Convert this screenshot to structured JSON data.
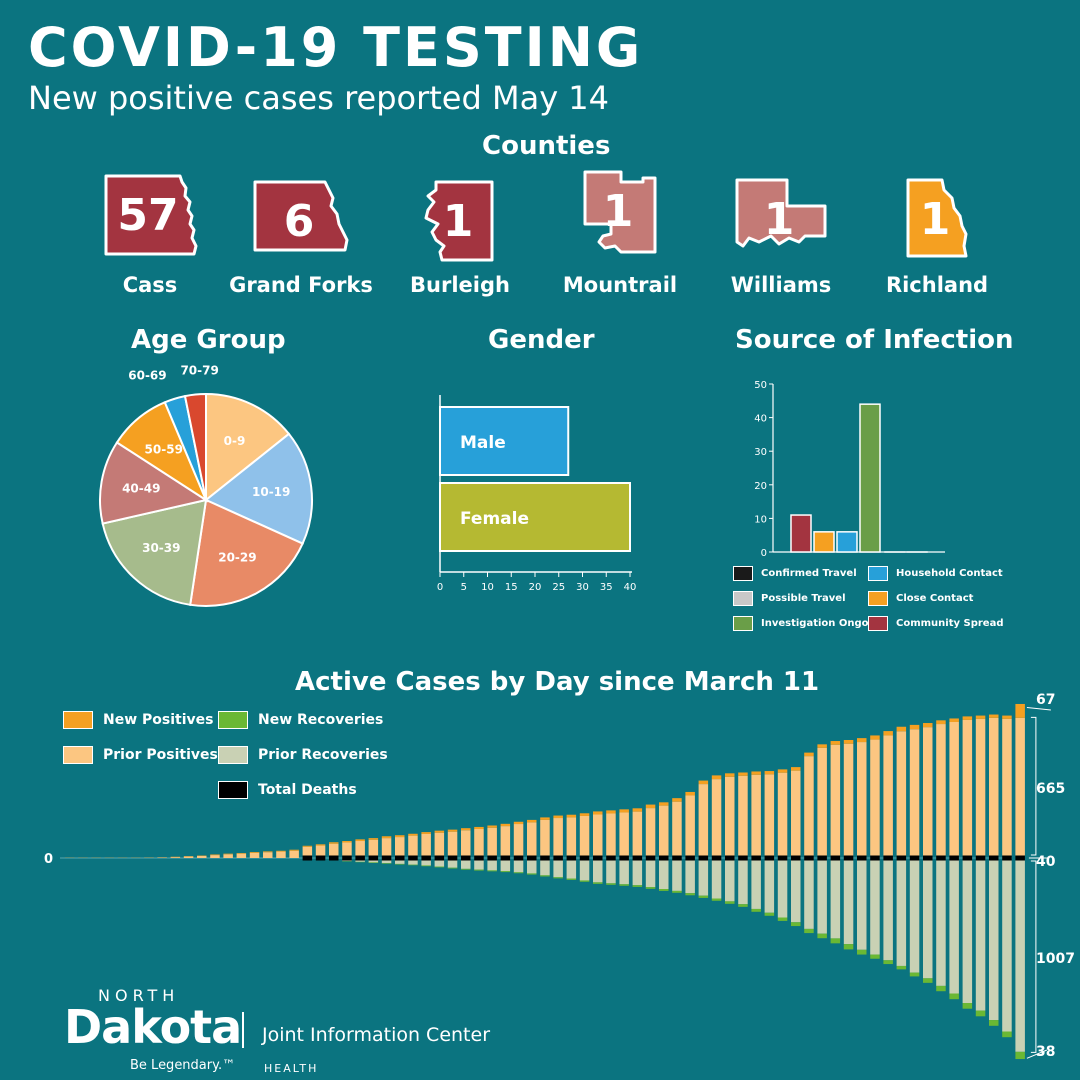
{
  "header": {
    "title": "COVID-19 TESTING",
    "subtitle": "New positive cases reported May 14"
  },
  "counties": {
    "title": "Counties",
    "items": [
      {
        "name": "Cass",
        "count": "57",
        "color": "#a33440",
        "shape": "cass-county-icon"
      },
      {
        "name": "Grand Forks",
        "count": "6",
        "color": "#a33440",
        "shape": "grand-forks-county-icon"
      },
      {
        "name": "Burleigh",
        "count": "1",
        "color": "#a33440",
        "shape": "burleigh-county-icon"
      },
      {
        "name": "Mountrail",
        "count": "1",
        "color": "#c47a76",
        "shape": "mountrail-county-icon"
      },
      {
        "name": "Williams",
        "count": "1",
        "color": "#c47a76",
        "shape": "williams-county-icon"
      },
      {
        "name": "Richland",
        "count": "1",
        "color": "#f5a021",
        "shape": "richland-county-icon"
      }
    ]
  },
  "age_section": {
    "title": "Age Group"
  },
  "gender_section": {
    "title": "Gender"
  },
  "source_section": {
    "title": "Source of Infection"
  },
  "active_section": {
    "title": "Active Cases by Day since March 11"
  },
  "chart_data": [
    {
      "type": "pie",
      "title": "Age Group",
      "categories": [
        "0-9",
        "10-19",
        "20-29",
        "30-39",
        "40-49",
        "50-59",
        "60-69",
        "70-79"
      ],
      "values": [
        9,
        11,
        13,
        12,
        8,
        6,
        2,
        2
      ],
      "colors": [
        "#fcc681",
        "#8fc1ea",
        "#e88a66",
        "#a6bb8c",
        "#c47a76",
        "#f5a021",
        "#27a0d9",
        "#d9482e"
      ]
    },
    {
      "type": "bar",
      "orientation": "horizontal",
      "title": "Gender",
      "categories": [
        "Male",
        "Female"
      ],
      "values": [
        27,
        40
      ],
      "colors": [
        "#27a0d9",
        "#b5b932"
      ],
      "xlim": [
        0,
        40
      ],
      "ticks": [
        0,
        5,
        10,
        15,
        20,
        25,
        30,
        35,
        40
      ]
    },
    {
      "type": "bar",
      "title": "Source of Infection",
      "categories": [
        "Community Spread",
        "Close Contact",
        "Household Contact",
        "Investigation Ongoing",
        "Confirmed Travel",
        "Possible Travel"
      ],
      "values": [
        11,
        6,
        6,
        44,
        0,
        0
      ],
      "colors": [
        "#a33440",
        "#f5a021",
        "#27a0d9",
        "#6a9e48",
        "#1a1a1a",
        "#c8c8c8"
      ],
      "ylim": [
        0,
        50
      ],
      "ticks": [
        0,
        10,
        20,
        30,
        40,
        50
      ],
      "legend": [
        {
          "label": "Confirmed Travel",
          "color": "#1a1a1a"
        },
        {
          "label": "Household Contact",
          "color": "#27a0d9"
        },
        {
          "label": "Possible Travel",
          "color": "#c8c8c8"
        },
        {
          "label": "Close Contact",
          "color": "#f5a021"
        },
        {
          "label": "Investigation Ongoing",
          "color": "#6a9e48"
        },
        {
          "label": "Community Spread",
          "color": "#a33440"
        }
      ]
    },
    {
      "type": "bar",
      "stacked": true,
      "title": "Active Cases by Day since March 11",
      "zero_label": "0",
      "series": [
        {
          "name": "New Positives",
          "color": "#f5a021",
          "values": [
            1,
            1,
            1,
            1,
            1,
            1,
            1,
            1,
            2,
            2,
            2,
            3,
            3,
            3,
            4,
            4,
            4,
            5,
            5,
            6,
            7,
            7,
            8,
            8,
            9,
            9,
            9,
            9,
            10,
            10,
            10,
            10,
            11,
            11,
            11,
            12,
            12,
            12,
            13,
            13,
            15,
            15,
            15,
            16,
            17,
            16,
            17,
            17,
            17,
            18,
            17,
            16,
            16,
            16,
            16,
            17,
            17,
            17,
            18,
            18,
            19,
            20,
            21,
            22,
            21,
            20,
            18,
            17,
            17,
            16,
            16,
            16,
            67
          ]
        },
        {
          "name": "Prior Positives",
          "color": "#fcc681",
          "values": [
            0,
            0,
            0,
            0,
            0,
            0,
            1,
            2,
            4,
            7,
            10,
            14,
            18,
            21,
            25,
            28,
            31,
            35,
            42,
            48,
            57,
            63,
            70,
            76,
            84,
            89,
            96,
            104,
            110,
            115,
            122,
            128,
            134,
            142,
            152,
            160,
            172,
            181,
            184,
            191,
            198,
            203,
            208,
            212,
            229,
            241,
            260,
            290,
            345,
            369,
            380,
            385,
            390,
            392,
            400,
            410,
            480,
            520,
            535,
            540,
            548,
            560,
            580,
            600,
            610,
            620,
            635,
            645,
            655,
            660,
            665,
            660,
            665
          ]
        },
        {
          "name": "Total Deaths",
          "color": "#000000",
          "values": [
            0,
            0,
            0,
            0,
            0,
            0,
            0,
            0,
            0,
            0,
            0,
            0,
            0,
            0,
            0,
            0,
            0,
            0,
            1,
            1,
            1,
            2,
            2,
            3,
            3,
            3,
            4,
            4,
            5,
            5,
            6,
            6,
            7,
            7,
            8,
            8,
            9,
            9,
            9,
            10,
            10,
            11,
            11,
            13,
            13,
            14,
            15,
            17,
            17,
            19,
            20,
            21,
            23,
            25,
            25,
            27,
            28,
            29,
            30,
            31,
            31,
            32,
            33,
            34,
            35,
            36,
            36,
            37,
            37,
            38,
            39,
            40,
            40
          ]
        },
        {
          "name": "Prior Recoveries",
          "color": "#c9d1b4",
          "values": [
            0,
            0,
            0,
            0,
            0,
            0,
            0,
            0,
            0,
            0,
            0,
            0,
            0,
            0,
            0,
            0,
            0,
            0,
            0,
            0,
            0,
            3,
            7,
            10,
            14,
            18,
            22,
            26,
            32,
            38,
            44,
            48,
            52,
            56,
            62,
            68,
            78,
            88,
            95,
            105,
            115,
            120,
            125,
            130,
            140,
            150,
            160,
            172,
            185,
            200,
            215,
            230,
            255,
            275,
            300,
            325,
            360,
            385,
            410,
            440,
            470,
            495,
            525,
            555,
            590,
            620,
            660,
            700,
            750,
            790,
            840,
            900,
            1007
          ]
        },
        {
          "name": "New Recoveries",
          "color": "#6ab834",
          "values": [
            0,
            0,
            0,
            0,
            0,
            0,
            0,
            0,
            0,
            0,
            0,
            0,
            0,
            0,
            0,
            0,
            0,
            0,
            0,
            0,
            0,
            2,
            2,
            3,
            3,
            3,
            3,
            4,
            4,
            4,
            4,
            5,
            5,
            5,
            5,
            6,
            6,
            6,
            7,
            7,
            8,
            8,
            8,
            9,
            9,
            10,
            10,
            11,
            12,
            12,
            13,
            14,
            15,
            16,
            18,
            20,
            22,
            24,
            26,
            28,
            25,
            22,
            20,
            18,
            20,
            24,
            28,
            30,
            30,
            30,
            30,
            30,
            38
          ]
        }
      ],
      "value_labels": [
        "67",
        "665",
        "40",
        "1007",
        "38"
      ]
    }
  ],
  "footer": {
    "logo_top": "NORTH",
    "logo_main": "Dakota",
    "tagline": "Be Legendary.™",
    "org": "Joint Information Center",
    "dept": "HEALTH"
  }
}
